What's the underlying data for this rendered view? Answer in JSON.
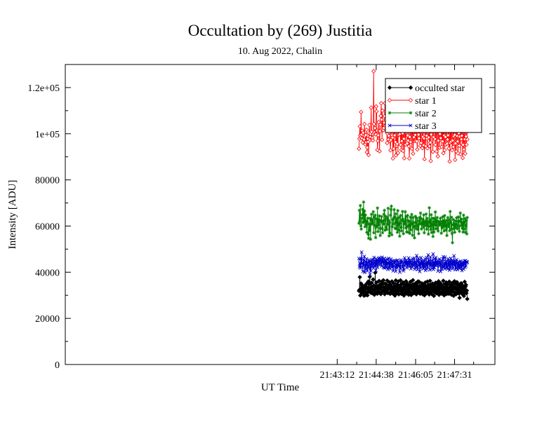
{
  "chart_data": {
    "type": "line",
    "title": "Occultation by (269) Justitia",
    "subtitle": "10. Aug 2022, Chalin",
    "xlabel": "UT Time",
    "ylabel": "Intensity [ADU]",
    "xlim_seconds": [
      77592,
      78540
    ],
    "xticks": [
      "21:43:12",
      "21:44:38",
      "21:46:05",
      "21:47:31"
    ],
    "yticks": [
      "0",
      "20000",
      "40000",
      "60000",
      "80000",
      "1e+05",
      "1.2e+05"
    ],
    "ylim": [
      0,
      130000
    ],
    "legend": {
      "placement": "top-right",
      "entries": [
        "occulted star",
        "star 1",
        "star 2",
        "star 3"
      ]
    },
    "time_range": [
      "21:44:00",
      "21:47:59"
    ],
    "series": [
      {
        "name": "occulted star",
        "color": "#000000",
        "marker": "diamond",
        "values": [
          31889,
          32334,
          37848,
          29934,
          31659,
          35067,
          33090,
          30990,
          34153,
          32105,
          31023,
          33908,
          29804,
          31549,
          34202,
          32874,
          30120,
          33755,
          35019,
          31202,
          29997,
          32618,
          36001,
          31520,
          33087,
          38003,
          34920,
          32210,
          31050,
          35402,
          33611,
          30874,
          31980,
          36850,
          34102,
          32455,
          30210,
          33990,
          39802,
          31204,
          32786,
          35540,
          33009,
          30650,
          34012,
          31720,
          33504,
          36210,
          31089,
          32960,
          34588,
          30503,
          33760,
          35911,
          31420,
          32099,
          34970,
          36520,
          31850,
          33360,
          30470,
          35108,
          32210,
          34790,
          31640,
          33520,
          36370,
          30950,
          32880,
          34190,
          31020,
          35670,
          33040,
          30580,
          34450,
          32280,
          31190,
          36010,
          33570,
          30740,
          32960,
          35280,
          31710,
          34010,
          29870,
          33140,
          36450,
          32320,
          30910,
          34670,
          31570,
          33810,
          35990,
          30400,
          32750,
          34240,
          31910,
          36480,
          33180,
          30620,
          34930,
          32090,
          31360,
          35570,
          33250,
          29880,
          32760,
          34600,
          31130,
          33990,
          36120,
          30760,
          32420,
          35010,
          31850,
          33630,
          30210,
          34380,
          32960,
          31490,
          35810,
          33390,
          30100,
          32880,
          34520,
          31020,
          36570,
          33760,
          30890,
          32230,
          34860,
          31550,
          33100,
          35320,
          30420,
          32670,
          34180,
          31880,
          36030,
          33460,
          31070,
          35760,
          32120,
          30620,
          34090,
          33580,
          31320,
          35190,
          32790,
          30440,
          33880,
          31720,
          34760,
          29990,
          33020,
          35580,
          31310,
          34020,
          30870,
          32640,
          35940,
          33250,
          31600,
          34510,
          30320,
          32900,
          36250,
          31040,
          33490,
          34690,
          30530,
          32150,
          35070,
          31960,
          33640,
          29730,
          34270,
          32580,
          31190,
          35450,
          33100,
          30840,
          32380,
          34970,
          31730,
          33960,
          36080,
          30170,
          32760,
          34470,
          31250,
          35200,
          33010,
          30700,
          34140,
          32820,
          31480,
          36300,
          33300,
          29950,
          32690,
          34860,
          31060,
          33500,
          35590,
          30540,
          32260,
          34720,
          31790,
          33080,
          30630,
          35930,
          32940,
          31390,
          34400,
          33190,
          30220,
          32570,
          35300,
          31660,
          34030,
          29780,
          33550,
          36110,
          31120,
          32850,
          34960,
          30470,
          33270,
          35700,
          31400,
          32050,
          34620,
          30810,
          33660,
          28890,
          32610,
          34980,
          31330,
          35230,
          32980,
          30590,
          34300,
          31900,
          33540,
          29690,
          32480,
          35850,
          31030,
          33760,
          34510,
          30960,
          32030,
          28410
        ]
      },
      {
        "name": "star 1",
        "color": "#ff0000",
        "marker": "diamond-open",
        "values": [
          93500,
          97800,
          103200,
          99200,
          98400,
          109400,
          99600,
          98000,
          101300,
          96200,
          100400,
          99100,
          97500,
          104200,
          98800,
          95400,
          99400,
          96300,
          101700,
          92000,
          94000,
          97800,
          96500,
          90800,
          100200,
          103800,
          97300,
          98600,
          99900,
          111300,
          100800,
          97500,
          98200,
          97100,
          99800,
          127100,
          104200,
          100600,
          102400,
          99800,
          99700,
          111800,
          109700,
          101400,
          93000,
          96900,
          99300,
          105000,
          101300,
          92400,
          101100,
          103900,
          107700,
          113200,
          106100,
          97400,
          110000,
          102300,
          101500,
          102500,
          104800,
          107600,
          113200,
          103400,
          109800,
          108800,
          104900,
          96000,
          100100,
          103400,
          97500,
          99100,
          100600,
          106500,
          96800,
          92800,
          97300,
          107100,
          113300,
          99300,
          98300,
          89300,
          103800,
          93500,
          104500,
          99300,
          109100,
          96400,
          90600,
          101900,
          94700,
          95600,
          101500,
          91700,
          106700,
          99500,
          101800,
          99800,
          103700,
          95200,
          112700,
          93000,
          96800,
          104700,
          100200,
          92600,
          102500,
          97800,
          89400,
          105600,
          100900,
          95300,
          101700,
          103500,
          108200,
          95800,
          99200,
          97000,
          103500,
          94600,
          89300,
          98600,
          102800,
          96400,
          101500,
          110600,
          93500,
          104900,
          101400,
          91400,
          100800,
          98500,
          106800,
          96800,
          99500,
          103400,
          97000,
          101800,
          96700,
          93200,
          103800,
          102100,
          99600,
          98000,
          102400,
          104700,
          94700,
          100800,
          96000,
          105600,
          111000,
          93800,
          98600,
          101500,
          95000,
          98000,
          89000,
          100800,
          106000,
          94600,
          104800,
          99100,
          97900,
          93700,
          110000,
          100700,
          98400,
          103200,
          94600,
          105400,
          96200,
          88200,
          99700,
          104900,
          107700,
          100800,
          92200,
          101900,
          98500,
          105400,
          107400,
          97700,
          95200,
          102400,
          103600,
          92300,
          109400,
          101000,
          90200,
          97000,
          107200,
          100000,
          94000,
          99900,
          106800,
          98100,
          103400,
          94300,
          101100,
          96700,
          104500,
          91600,
          108200,
          99200,
          92900,
          103800,
          98600,
          95300,
          101000,
          105900,
          95700,
          97500,
          99300,
          102600,
          93600,
          108600,
          88000,
          96000,
          104200,
          96600,
          102000,
          101500,
          92900,
          97100,
          108400,
          94300,
          98900,
          104700,
          99500,
          88700,
          95800,
          101400,
          92300,
          105900,
          99000,
          96700,
          91500,
          103900,
          100200,
          94800,
          98800,
          102400,
          91100,
          106300,
          97600,
          99100,
          103800,
          89500,
          95200,
          107800,
          93200,
          101600,
          97600,
          91400,
          104200,
          98800,
          95300,
          100700,
          97500
        ]
      },
      {
        "name": "star 2",
        "color": "#008000",
        "marker": "star",
        "values": [
          61200,
          66800,
          62100,
          68900,
          60100,
          58700,
          63300,
          64900,
          67200,
          61500,
          70400,
          62100,
          66500,
          59700,
          64800,
          60600,
          62200,
          57300,
          61800,
          63400,
          56400,
          54700,
          60900,
          58100,
          63300,
          54300,
          62500,
          65100,
          60800,
          62700,
          61500,
          66200,
          57100,
          60400,
          63700,
          64700,
          55000,
          59500,
          63000,
          60100,
          67800,
          57600,
          62900,
          60500,
          64400,
          59000,
          55900,
          62600,
          61800,
          64100,
          58900,
          57100,
          62200,
          60900,
          65100,
          66800,
          58200,
          62800,
          64200,
          59500,
          58500,
          63500,
          60700,
          67700,
          62400,
          55700,
          61500,
          57000,
          64700,
          67200,
          68600,
          56200,
          59700,
          62700,
          60800,
          63400,
          67100,
          64000,
          59000,
          61500,
          65300,
          58800,
          63200,
          57300,
          66700,
          58200,
          60900,
          63700,
          55600,
          61200,
          64600,
          59400,
          57900,
          62400,
          66300,
          63000,
          56700,
          62000,
          60800,
          61800,
          66200,
          59200,
          64100,
          57400,
          59800,
          64600,
          62400,
          57300,
          60300,
          62000,
          56800,
          63800,
          58300,
          61000,
          65000,
          60800,
          56000,
          63700,
          61500,
          59500,
          54900,
          60100,
          64200,
          61500,
          58900,
          63400,
          60000,
          58500,
          62300,
          56700,
          60800,
          63700,
          61000,
          65600,
          63300,
          58700,
          61700,
          60600,
          62900,
          59500,
          64800,
          57100,
          61300,
          62100,
          60200,
          65200,
          58600,
          63300,
          60000,
          62000,
          56500,
          61500,
          67900,
          59800,
          62600,
          58500,
          64900,
          57200,
          60700,
          63400,
          55500,
          61900,
          57400,
          63300,
          60500,
          66100,
          58800,
          62600,
          60200,
          63700,
          58900,
          57800,
          62100,
          61500,
          60300,
          60800,
          63400,
          61000,
          56900,
          62000,
          59200,
          64000,
          60000,
          62300,
          57900,
          64500,
          59900,
          61700,
          58300,
          62500,
          55900,
          60400,
          63700,
          61200,
          59600,
          62600,
          58000,
          66300,
          61500,
          58700,
          63800,
          56800,
          52800,
          60600,
          62800,
          58800,
          61100,
          57300,
          62200,
          60300,
          59200,
          63600,
          60700,
          58800,
          62100,
          64000,
          59900,
          57700,
          62100,
          65600,
          61800,
          60200,
          63000,
          59000,
          61500,
          57400,
          64700,
          58700,
          61900,
          63300,
          57300,
          60200,
          62500,
          56600,
          63700
        ]
      },
      {
        "name": "star 3",
        "color": "#0000cc",
        "marker": "cross",
        "values": [
          45900,
          42300,
          43900,
          41800,
          46000,
          42200,
          48700,
          43600,
          44100,
          40300,
          45600,
          42800,
          46900,
          39900,
          42400,
          44600,
          41200,
          45800,
          43500,
          40500,
          44300,
          42600,
          41800,
          45300,
          44700,
          38900,
          43700,
          40500,
          45200,
          44100,
          42200,
          45500,
          43400,
          41800,
          46400,
          43900,
          42700,
          44900,
          40800,
          45800,
          43100,
          45000,
          42100,
          44900,
          46000,
          43300,
          44800,
          46200,
          44600,
          43500,
          45400,
          42600,
          46500,
          44300,
          45500,
          42000,
          44400,
          46000,
          41800,
          45100,
          42700,
          44800,
          42000,
          45700,
          44000,
          41200,
          43900,
          46000,
          42100,
          44600,
          41500,
          44000,
          45700,
          43100,
          42100,
          44800,
          43600,
          40600,
          42600,
          45100,
          43800,
          44800,
          42100,
          40400,
          44900,
          43100,
          41800,
          45200,
          43000,
          42500,
          44200,
          42700,
          40000,
          44800,
          41500,
          45300,
          43900,
          44700,
          42200,
          43400,
          40600,
          41300,
          44400,
          46200,
          42700,
          44900,
          43600,
          45100,
          41900,
          44000,
          42800,
          44100,
          46200,
          44400,
          42600,
          45200,
          43900,
          41500,
          44800,
          43400,
          42100,
          45900,
          42900,
          43200,
          44400,
          46100,
          41300,
          44500,
          43800,
          42300,
          47200,
          42500,
          41100,
          44800,
          46000,
          42800,
          44700,
          40300,
          43900,
          41800,
          46300,
          43400,
          45000,
          42400,
          44300,
          41500,
          44900,
          42200,
          43600,
          45800,
          40800,
          43200,
          46300,
          41300,
          44500,
          42200,
          47500,
          43400,
          45300,
          44100,
          41000,
          46600,
          42800,
          43800,
          45100,
          41600,
          43000,
          47900,
          41200,
          44400,
          42000,
          45900,
          43000,
          46400,
          42900,
          44600,
          43400,
          45100,
          40500,
          43700,
          44200,
          45700,
          42600,
          44300,
          40300,
          43600,
          45100,
          41300,
          42700,
          45700,
          46700,
          42400,
          44000,
          41500,
          46500,
          43100,
          44500,
          42000,
          44900,
          42000,
          41400,
          45800,
          43000,
          44600,
          40900,
          44800,
          41800,
          46000,
          43800,
          42900,
          45000,
          41500,
          44800,
          43200,
          47100,
          42700,
          45000,
          41100,
          44400,
          42000,
          45400,
          43900,
          41100,
          44100,
          42300,
          44600,
          41600,
          43600,
          41800,
          44800,
          42100,
          43900,
          40700,
          44200,
          42700,
          44500,
          41300,
          43900,
          44900,
          42100,
          45000,
          42700,
          44300,
          44600,
          44200
        ]
      }
    ]
  }
}
